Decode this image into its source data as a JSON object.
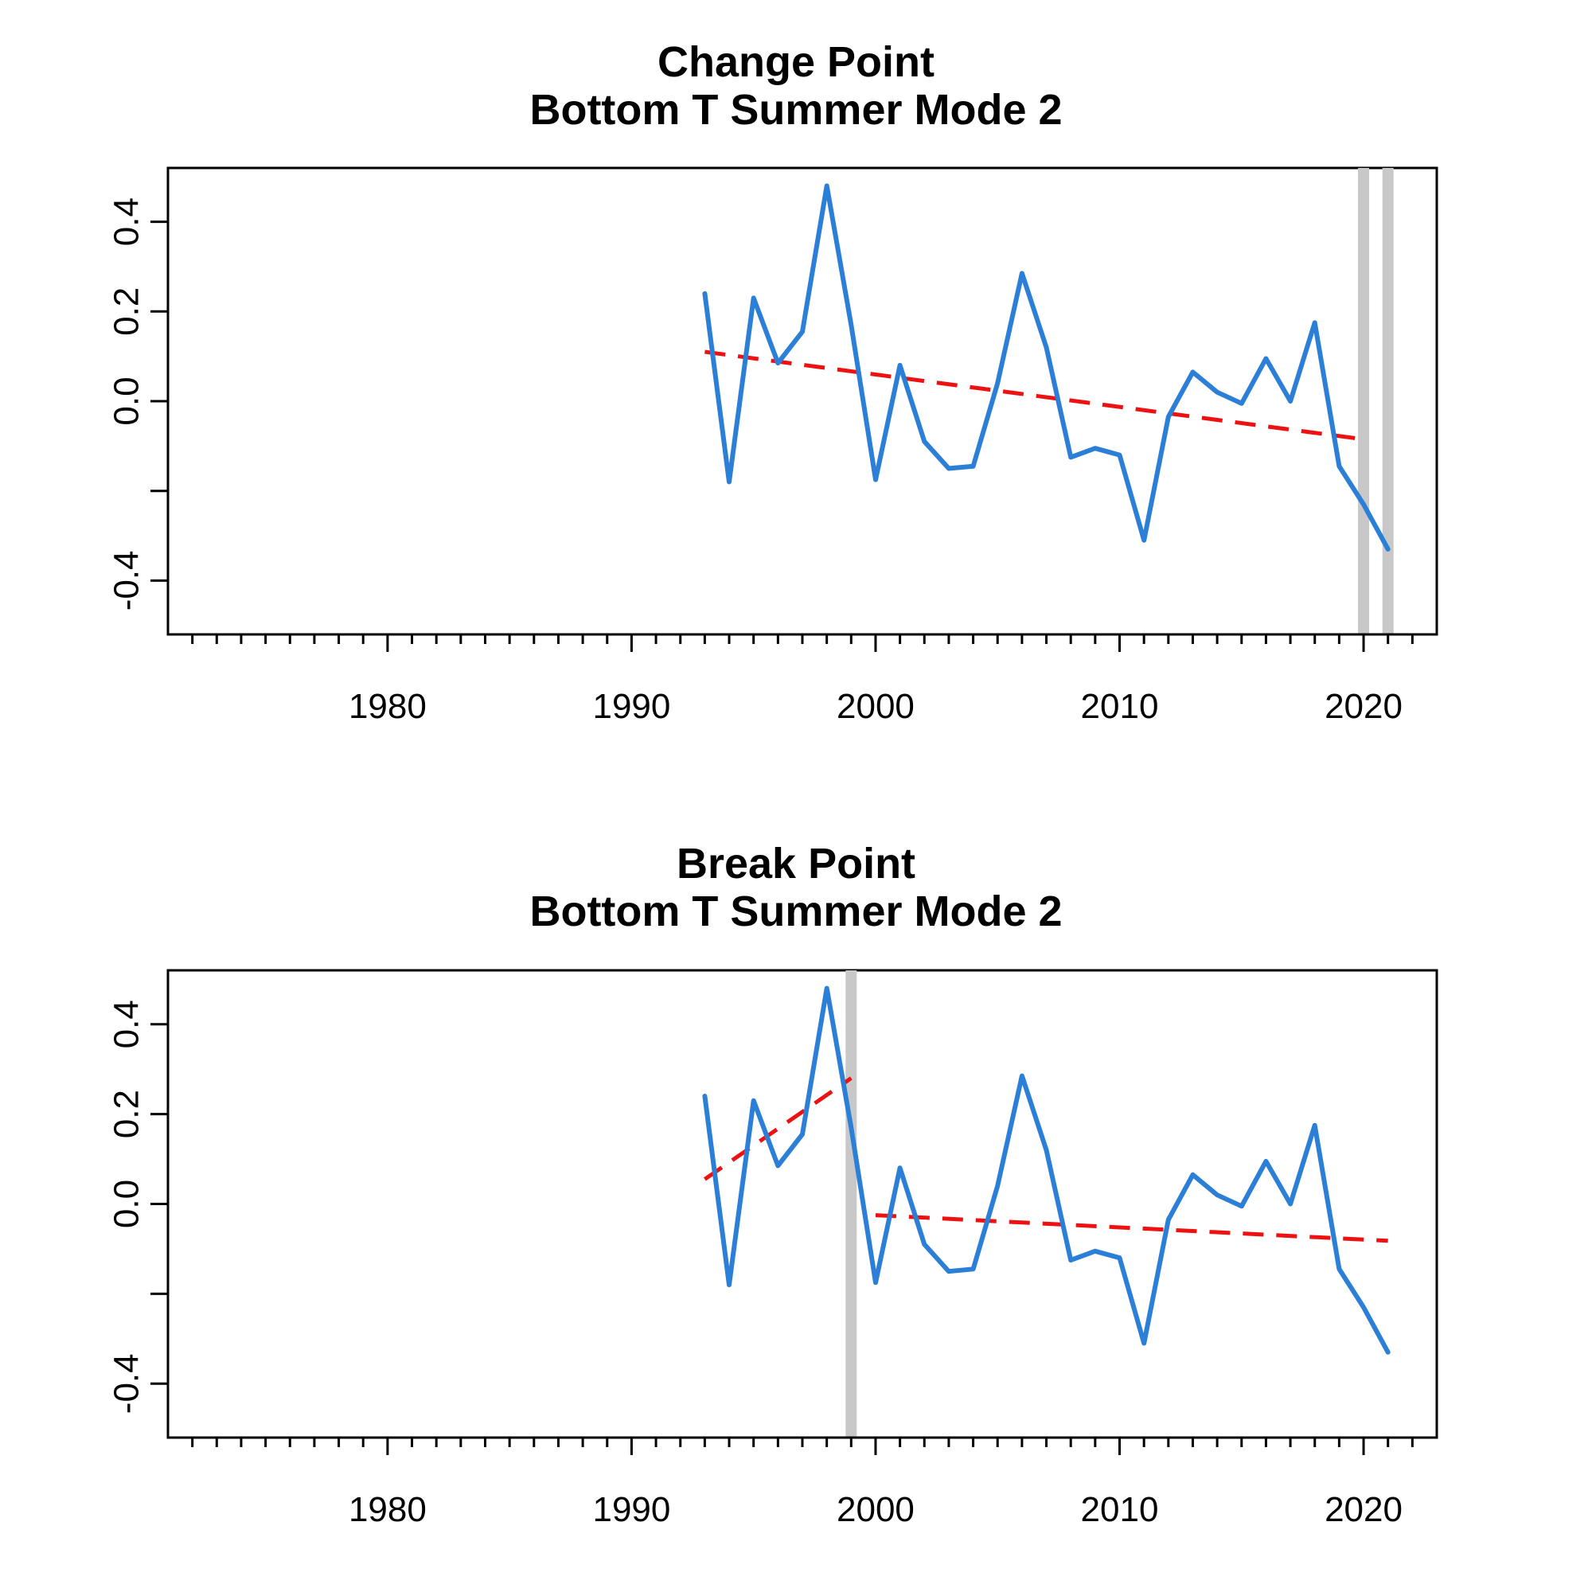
{
  "colors": {
    "series": "#2b7fd6",
    "trend": "#ee1111",
    "marker": "#c8c8c8"
  },
  "chart_data": [
    {
      "type": "line",
      "title": "Change Point",
      "subtitle": "Bottom T Summer Mode 2",
      "xlim": [
        1971,
        2023
      ],
      "ylim": [
        -0.52,
        0.52
      ],
      "xticks": [
        1980,
        1990,
        2000,
        2010,
        2020
      ],
      "yticks": [
        -0.4,
        -0.2,
        0.0,
        0.2,
        0.4
      ],
      "ytick_labels": [
        "-0.4",
        "",
        "0.0",
        "0.2",
        "0.4"
      ],
      "grid": false,
      "legend": "none",
      "x": [
        1993,
        1994,
        1995,
        1996,
        1997,
        1998,
        1999,
        2000,
        2001,
        2002,
        2003,
        2004,
        2005,
        2006,
        2007,
        2008,
        2009,
        2010,
        2011,
        2012,
        2013,
        2014,
        2015,
        2016,
        2017,
        2018,
        2019,
        2020,
        2021
      ],
      "values": [
        0.24,
        -0.18,
        0.23,
        0.085,
        0.155,
        0.48,
        0.17,
        -0.175,
        0.08,
        -0.09,
        -0.15,
        -0.145,
        0.04,
        0.285,
        0.12,
        -0.125,
        -0.105,
        -0.12,
        -0.31,
        -0.035,
        0.065,
        0.02,
        -0.005,
        0.095,
        0.0,
        0.175,
        -0.145,
        -0.23,
        -0.33
      ],
      "trends": [
        {
          "x": [
            1993,
            2020
          ],
          "y": [
            0.11,
            -0.085
          ]
        }
      ],
      "markers": [
        2020,
        2021
      ]
    },
    {
      "type": "line",
      "title": "Break Point",
      "subtitle": "Bottom T Summer Mode 2",
      "xlim": [
        1971,
        2023
      ],
      "ylim": [
        -0.52,
        0.52
      ],
      "xticks": [
        1980,
        1990,
        2000,
        2010,
        2020
      ],
      "yticks": [
        -0.4,
        -0.2,
        0.0,
        0.2,
        0.4
      ],
      "ytick_labels": [
        "-0.4",
        "",
        "0.0",
        "0.2",
        "0.4"
      ],
      "grid": false,
      "legend": "none",
      "x": [
        1993,
        1994,
        1995,
        1996,
        1997,
        1998,
        1999,
        2000,
        2001,
        2002,
        2003,
        2004,
        2005,
        2006,
        2007,
        2008,
        2009,
        2010,
        2011,
        2012,
        2013,
        2014,
        2015,
        2016,
        2017,
        2018,
        2019,
        2020,
        2021
      ],
      "values": [
        0.24,
        -0.18,
        0.23,
        0.085,
        0.155,
        0.48,
        0.17,
        -0.175,
        0.08,
        -0.09,
        -0.15,
        -0.145,
        0.04,
        0.285,
        0.12,
        -0.125,
        -0.105,
        -0.12,
        -0.31,
        -0.035,
        0.065,
        0.02,
        -0.005,
        0.095,
        0.0,
        0.175,
        -0.145,
        -0.23,
        -0.33
      ],
      "trends": [
        {
          "x": [
            1993,
            1999
          ],
          "y": [
            0.055,
            0.28
          ]
        },
        {
          "x": [
            2000,
            2021
          ],
          "y": [
            -0.025,
            -0.082
          ]
        }
      ],
      "markers": [
        1999
      ]
    }
  ]
}
